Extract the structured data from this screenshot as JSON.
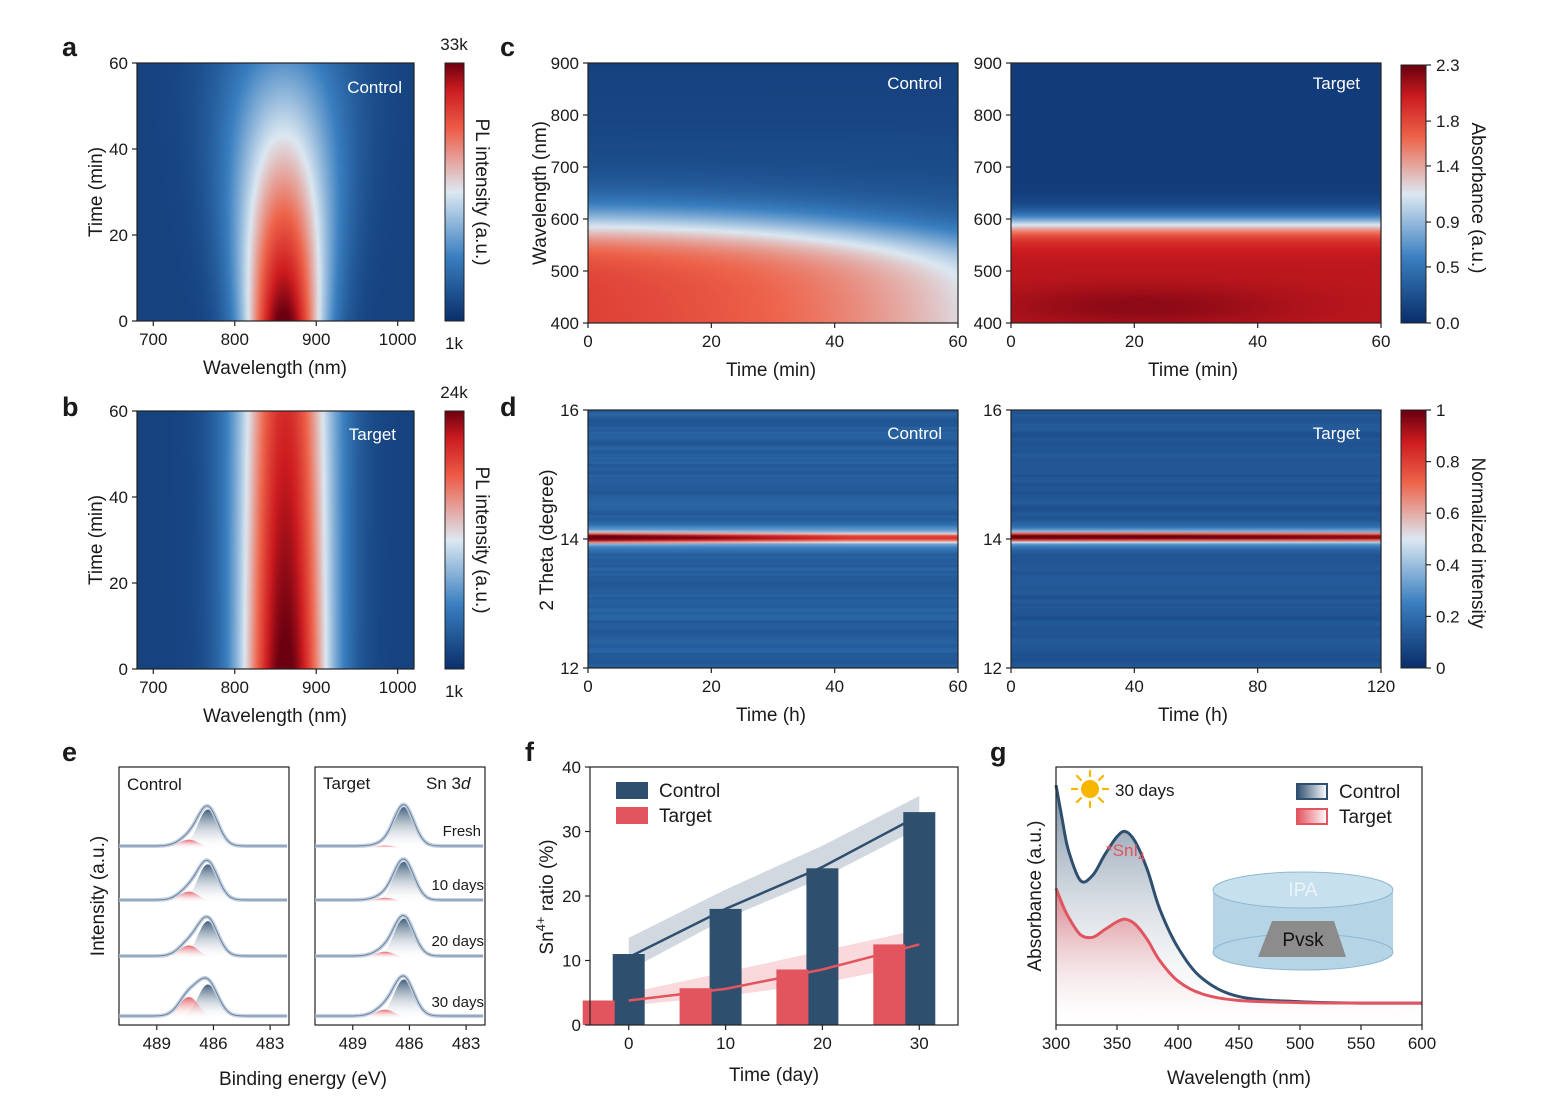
{
  "panels": {
    "a": {
      "letter": "a",
      "tag": "Control",
      "xlabel": "Wavelength (nm)",
      "ylabel": "Time (min)",
      "xticks": [
        "700",
        "800",
        "900",
        "1000"
      ],
      "yticks": [
        "0",
        "20",
        "40",
        "60"
      ],
      "xlim": [
        680,
        1020
      ],
      "ylim": [
        0,
        60
      ],
      "colorbar": {
        "label": "PL intensity (a.u.)",
        "max": "33k",
        "min": "1k"
      },
      "model": {
        "center_nm": 860,
        "peak_width_nm": [
          26,
          42
        ],
        "intensity_decay": [
          1.0,
          0.25
        ]
      }
    },
    "b": {
      "letter": "b",
      "tag": "Target",
      "xlabel": "Wavelength (nm)",
      "ylabel": "Time (min)",
      "xticks": [
        "700",
        "800",
        "900",
        "1000"
      ],
      "yticks": [
        "0",
        "20",
        "40",
        "60"
      ],
      "xlim": [
        680,
        1020
      ],
      "ylim": [
        0,
        60
      ],
      "colorbar": {
        "label": "PL intensity (a.u.)",
        "max": "24k",
        "min": "1k"
      },
      "model": {
        "center_nm": 862,
        "peak_width_nm": [
          30,
          32
        ],
        "intensity_decay": [
          1.0,
          0.82
        ]
      }
    },
    "c": {
      "letter": "c",
      "ylabel": "Wavelength (nm)",
      "xlabel": "Time (min)",
      "xticks": [
        "0",
        "20",
        "40",
        "60"
      ],
      "yticks": [
        "400",
        "500",
        "600",
        "700",
        "800",
        "900"
      ],
      "xlim": [
        0,
        60
      ],
      "ylim": [
        400,
        900
      ],
      "left_tag": "Control",
      "right_tag": "Target",
      "colorbar": {
        "label": "Absorbance (a.u.)",
        "ticks": [
          "0.0",
          "0.5",
          "0.9",
          "1.4",
          "1.8",
          "2.3"
        ],
        "range": [
          0,
          2.3
        ]
      }
    },
    "d": {
      "letter": "d",
      "ylabel": "2 Theta (degree)",
      "left": {
        "tag": "Control",
        "xlabel": "Time (h)",
        "xticks": [
          "0",
          "20",
          "40",
          "60"
        ],
        "xlim": [
          0,
          60
        ]
      },
      "right": {
        "tag": "Target",
        "xlabel": "Time (h)",
        "xticks": [
          "0",
          "40",
          "80",
          "120"
        ],
        "xlim": [
          0,
          120
        ]
      },
      "yticks": [
        "12",
        "14",
        "16"
      ],
      "ylim": [
        12,
        16
      ],
      "colorbar": {
        "label": "Normalized intensity",
        "ticks": [
          "0",
          "0.2",
          "0.4",
          "0.6",
          "0.8",
          "1"
        ],
        "range": [
          0,
          1
        ]
      }
    },
    "e": {
      "letter": "e",
      "xlabel": "Binding energy (eV)",
      "ylabel": "Intensity (a.u.)",
      "left_tag": "Control",
      "right_tag": "Target",
      "right_note": "Sn 3",
      "right_note_italic": "d",
      "xticks": [
        "489",
        "486",
        "483"
      ],
      "rows": [
        "Fresh",
        "10 days",
        "20 days",
        "30 days"
      ]
    },
    "f": {
      "letter": "f",
      "xlabel": "Time (day)",
      "ylabel_main": "Sn",
      "ylabel_sup": "4+",
      "ylabel_rest": " ratio (%)",
      "xticks": [
        "0",
        "10",
        "20",
        "30"
      ],
      "yticks": [
        "0",
        "10",
        "20",
        "30",
        "40"
      ],
      "ylim": [
        0,
        40
      ]
    },
    "g": {
      "letter": "g",
      "xlabel": "Wavelength (nm)",
      "ylabel": "Absorbance (a.u.)",
      "xticks": [
        "300",
        "350",
        "400",
        "450",
        "500",
        "550",
        "600"
      ],
      "xlim": [
        300,
        600
      ],
      "note": "30 days",
      "peak_label": "*SnI",
      "peak_sub": "4",
      "inset": {
        "top": "IPA",
        "center": "Pvsk"
      }
    }
  },
  "chart_data": [
    {
      "panel": "f",
      "type": "bar",
      "categories": [
        "0",
        "10",
        "20",
        "30"
      ],
      "x": [
        0,
        10,
        20,
        30
      ],
      "series": [
        {
          "name": "Control",
          "values": [
            11,
            18,
            24.3,
            33
          ],
          "color": "#2f4f6f",
          "trend_color": "#2f4f6f"
        },
        {
          "name": "Target",
          "values": [
            3.8,
            5.7,
            8.6,
            12.5
          ],
          "color": "#e2545e",
          "trend_color": "#e2545e"
        }
      ],
      "xlabel": "Time (day)",
      "ylim": [
        0,
        40
      ]
    },
    {
      "panel": "g",
      "type": "line",
      "xlim": [
        300,
        600
      ],
      "series": [
        {
          "name": "Control",
          "color": "#2f4f6f",
          "x": [
            300,
            305,
            310,
            320,
            330,
            340,
            350,
            357,
            365,
            375,
            385,
            400,
            420,
            450,
            500,
            550,
            600
          ],
          "y": [
            0.93,
            0.8,
            0.68,
            0.56,
            0.58,
            0.66,
            0.73,
            0.75,
            0.71,
            0.6,
            0.45,
            0.3,
            0.18,
            0.11,
            0.09,
            0.085,
            0.085
          ]
        },
        {
          "name": "Target",
          "color": "#e05560",
          "x": [
            300,
            305,
            310,
            320,
            330,
            340,
            350,
            357,
            365,
            375,
            385,
            400,
            420,
            450,
            500,
            550,
            600
          ],
          "y": [
            0.53,
            0.47,
            0.42,
            0.35,
            0.34,
            0.37,
            0.4,
            0.41,
            0.39,
            0.33,
            0.25,
            0.17,
            0.12,
            0.095,
            0.087,
            0.085,
            0.085
          ]
        }
      ]
    },
    {
      "panel": "e",
      "type": "area",
      "x_binding_energy_ev": [
        491,
        482
      ],
      "peaks": {
        "sn2_center_ev": 486.3,
        "sn4_center_ev": 487.3,
        "control_sn4_rel": [
          0.2,
          0.25,
          0.3,
          0.5
        ],
        "target_sn4_rel": [
          0.06,
          0.1,
          0.15,
          0.2
        ]
      }
    },
    {
      "panel": "f-legend",
      "type": "table",
      "legend": [
        "Control",
        "Target"
      ]
    },
    {
      "panel": "g-legend",
      "type": "table",
      "legend": [
        "Control",
        "Target"
      ]
    }
  ],
  "colors": {
    "cmap_dark": "#0a2f6b",
    "cmap_mid": "#dce8f2",
    "cmap_red": "#e23530",
    "cmap_max": "#6b0010",
    "control": "#2f4f6f",
    "target": "#e2545e",
    "inset_fill": "#a8cce0",
    "inset_pvsk": "#8c8c8c",
    "sun": "#f7b500"
  }
}
